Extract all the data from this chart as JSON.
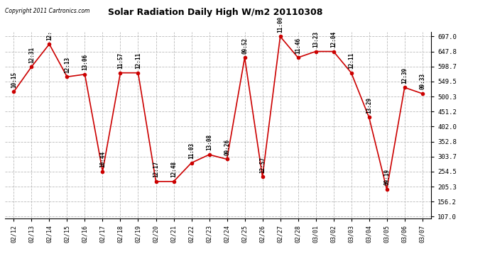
{
  "title": "Solar Radiation Daily High W/m2 20110308",
  "copyright": "Copyright 2011 Cartronics.com",
  "dates": [
    "02/12",
    "02/13",
    "02/14",
    "02/15",
    "02/16",
    "02/17",
    "02/18",
    "02/19",
    "02/20",
    "02/21",
    "02/22",
    "02/23",
    "02/24",
    "02/25",
    "02/26",
    "02/27",
    "02/28",
    "03/01",
    "03/02",
    "03/03",
    "03/04",
    "03/05",
    "03/06",
    "03/07"
  ],
  "values": [
    516,
    598,
    672,
    565,
    573,
    255,
    578,
    578,
    222,
    222,
    283,
    310,
    295,
    628,
    237,
    697,
    628,
    648,
    648,
    578,
    432,
    196,
    530,
    510
  ],
  "times": [
    "10:15",
    "12:31",
    "12:",
    "12:13",
    "13:06",
    "10:44",
    "11:57",
    "12:11",
    "12:17",
    "12:48",
    "11:03",
    "13:08",
    "09:26",
    "09:52",
    "12:57",
    "11:00",
    "11:46",
    "13:23",
    "12:04",
    "12:11",
    "13:29",
    "09:19",
    "12:39",
    "09:33"
  ],
  "line_color": "#cc0000",
  "marker_color": "#cc0000",
  "bg_color": "#ffffff",
  "grid_color": "#bbbbbb",
  "text_color": "#000000",
  "ymin": 107.0,
  "ymax": 697.0,
  "yticks": [
    107.0,
    156.2,
    205.3,
    254.5,
    303.7,
    352.8,
    402.0,
    451.2,
    500.3,
    549.5,
    598.7,
    647.8,
    697.0
  ]
}
